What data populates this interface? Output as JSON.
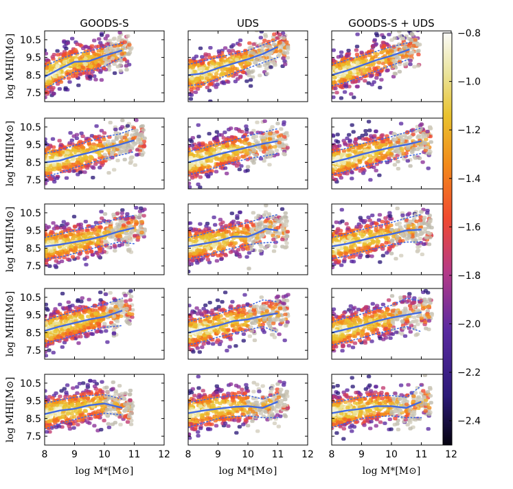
{
  "chart_data": {
    "type": "scatter",
    "description_rows": 5,
    "column_titles": [
      "GOODS-S",
      "UDS",
      "GOODS-S + UDS"
    ],
    "xlabel": "log M*[M⊙]",
    "ylabel": "log MHI[M⊙]",
    "xlim": [
      8,
      12
    ],
    "ylim": [
      7.0,
      11.0
    ],
    "xticks": [
      8,
      9,
      10,
      11,
      12
    ],
    "yticks": [
      7.5,
      8.5,
      9.5,
      10.5
    ],
    "xtick_labels": [
      "8",
      "9",
      "10",
      "11",
      "12"
    ],
    "ytick_labels": [
      "7.5",
      "8.5",
      "9.5",
      "10.5"
    ],
    "colorbar": {
      "range": [
        -2.5,
        -0.8
      ],
      "ticks": [
        -2.4,
        -2.2,
        -2.0,
        -1.8,
        -1.6,
        -1.4,
        -1.2,
        -1.0,
        -0.8
      ],
      "tick_labels": [
        "−2.4",
        "−2.2",
        "−2.0",
        "−1.8",
        "−1.6",
        "−1.4",
        "−1.2",
        "−1.0",
        "−0.8"
      ],
      "colormap": "CMRmap-like (black-purple-red-orange-yellow-white)"
    },
    "colors": {
      "median": "#4169e1",
      "percentile": "#4169e1",
      "density_low": "#2a1a5c",
      "density_high": "#f8f6d8"
    },
    "panels": [
      [
        {
          "median": {
            "x": [
              8.0,
              8.5,
              9.0,
              9.5,
              10.0,
              10.6
            ],
            "y": [
              8.4,
              8.85,
              9.25,
              9.3,
              9.6,
              9.9
            ]
          },
          "upper": {
            "x": [
              8.0,
              8.5,
              9.0,
              9.5,
              10.0,
              10.6
            ],
            "y": [
              9.0,
              9.4,
              9.7,
              9.85,
              10.1,
              10.3
            ]
          },
          "lower": {
            "x": [
              8.0,
              8.5,
              9.0,
              9.5,
              10.0,
              10.6
            ],
            "y": [
              7.7,
              8.2,
              8.7,
              8.75,
              9.0,
              9.5
            ]
          }
        },
        {
          "median": {
            "x": [
              8.0,
              8.5,
              9.0,
              9.5,
              10.0,
              10.5,
              11.0
            ],
            "y": [
              8.5,
              8.6,
              8.9,
              9.15,
              9.4,
              9.7,
              10.1
            ]
          },
          "upper": {
            "x": [
              8.0,
              8.5,
              9.0,
              9.5,
              10.0,
              10.5,
              11.0
            ],
            "y": [
              9.1,
              9.3,
              9.5,
              9.7,
              9.9,
              10.2,
              10.5
            ]
          },
          "lower": {
            "x": [
              8.0,
              8.5,
              9.0,
              9.5,
              10.0,
              10.5,
              11.0
            ],
            "y": [
              7.9,
              8.0,
              8.3,
              8.6,
              8.9,
              9.2,
              9.5
            ]
          }
        },
        {
          "median": {
            "x": [
              8.0,
              8.5,
              9.0,
              9.5,
              10.0,
              10.6
            ],
            "y": [
              8.5,
              8.75,
              9.05,
              9.35,
              9.6,
              9.95
            ]
          },
          "upper": {
            "x": [
              8.0,
              8.5,
              9.0,
              9.5,
              10.0,
              10.6
            ],
            "y": [
              9.1,
              9.35,
              9.6,
              9.85,
              10.1,
              10.35
            ]
          },
          "lower": {
            "x": [
              8.0,
              8.5,
              9.0,
              9.5,
              10.0,
              10.6
            ],
            "y": [
              7.9,
              8.1,
              8.4,
              8.75,
              9.05,
              9.4
            ]
          }
        }
      ],
      [
        {
          "median": {
            "x": [
              8.0,
              8.5,
              9.0,
              9.5,
              10.0,
              10.5,
              11.0
            ],
            "y": [
              8.5,
              8.6,
              8.85,
              9.05,
              9.3,
              9.5,
              9.75
            ]
          },
          "upper": {
            "x": [
              8.0,
              8.5,
              9.0,
              9.5,
              10.0,
              10.5,
              11.0
            ],
            "y": [
              9.0,
              9.2,
              9.45,
              9.7,
              9.95,
              10.1,
              10.4
            ]
          },
          "lower": {
            "x": [
              8.0,
              8.5,
              9.0,
              9.5,
              10.0,
              10.5,
              11.0
            ],
            "y": [
              7.7,
              7.9,
              8.2,
              8.45,
              8.7,
              8.9,
              9.1
            ]
          }
        },
        {
          "median": {
            "x": [
              8.0,
              8.5,
              9.0,
              9.5,
              10.0,
              10.5,
              11.0
            ],
            "y": [
              8.5,
              8.7,
              8.95,
              9.15,
              9.35,
              9.55,
              9.7
            ]
          },
          "upper": {
            "x": [
              8.0,
              8.5,
              9.0,
              9.5,
              10.0,
              10.5,
              11.0
            ],
            "y": [
              9.1,
              9.3,
              9.55,
              9.75,
              10.0,
              10.2,
              10.4
            ]
          },
          "lower": {
            "x": [
              8.0,
              8.5,
              9.0,
              9.5,
              10.0,
              10.5,
              11.0
            ],
            "y": [
              7.8,
              8.0,
              8.25,
              8.5,
              8.7,
              8.85,
              9.0
            ]
          }
        },
        {
          "median": {
            "x": [
              8.0,
              8.5,
              9.0,
              9.5,
              10.0,
              10.5,
              11.0
            ],
            "y": [
              8.5,
              8.7,
              8.95,
              9.15,
              9.35,
              9.5,
              9.7
            ]
          },
          "upper": {
            "x": [
              8.0,
              8.5,
              9.0,
              9.5,
              10.0,
              10.5,
              11.0
            ],
            "y": [
              9.1,
              9.3,
              9.55,
              9.75,
              9.95,
              10.2,
              10.45
            ]
          },
          "lower": {
            "x": [
              8.0,
              8.5,
              9.0,
              9.5,
              10.0,
              10.5,
              11.0
            ],
            "y": [
              7.8,
              8.0,
              8.25,
              8.45,
              8.65,
              8.85,
              9.0
            ]
          }
        }
      ],
      [
        {
          "median": {
            "x": [
              8.0,
              8.5,
              9.0,
              9.5,
              10.0,
              10.5,
              11.0
            ],
            "y": [
              8.6,
              8.7,
              8.85,
              9.0,
              9.2,
              9.45,
              9.65
            ]
          },
          "upper": {
            "x": [
              8.0,
              8.5,
              9.0,
              9.5,
              10.0,
              10.5,
              11.0
            ],
            "y": [
              9.1,
              9.3,
              9.5,
              9.7,
              9.95,
              10.2,
              10.35
            ]
          },
          "lower": {
            "x": [
              8.0,
              8.5,
              9.0,
              9.5,
              10.0,
              10.5,
              11.0
            ],
            "y": [
              7.9,
              8.0,
              8.2,
              8.45,
              8.65,
              8.85,
              8.75
            ]
          }
        },
        {
          "median": {
            "x": [
              8.0,
              8.5,
              9.0,
              9.5,
              10.0,
              10.3,
              10.6,
              11.0
            ],
            "y": [
              8.6,
              8.75,
              8.9,
              9.15,
              9.15,
              9.35,
              9.6,
              9.5
            ]
          },
          "upper": {
            "x": [
              8.0,
              8.5,
              9.0,
              9.5,
              10.0,
              10.5,
              11.0
            ],
            "y": [
              9.1,
              9.3,
              9.55,
              9.75,
              9.95,
              10.2,
              10.4
            ]
          },
          "lower": {
            "x": [
              8.0,
              8.5,
              9.0,
              9.5,
              10.0,
              10.5,
              11.0
            ],
            "y": [
              7.9,
              8.05,
              8.3,
              8.5,
              8.7,
              8.8,
              8.85
            ]
          }
        },
        {
          "median": {
            "x": [
              8.0,
              8.5,
              9.0,
              9.5,
              10.0,
              10.5,
              11.0
            ],
            "y": [
              8.6,
              8.75,
              8.95,
              9.15,
              9.3,
              9.5,
              9.55
            ]
          },
          "upper": {
            "x": [
              8.0,
              8.5,
              9.0,
              9.5,
              10.0,
              10.5,
              11.0
            ],
            "y": [
              9.1,
              9.3,
              9.55,
              9.75,
              9.95,
              10.2,
              10.4
            ]
          },
          "lower": {
            "x": [
              8.0,
              8.5,
              9.0,
              9.5,
              10.0,
              10.5,
              11.0
            ],
            "y": [
              7.9,
              8.05,
              8.3,
              8.5,
              8.7,
              8.85,
              8.85
            ]
          }
        }
      ],
      [
        {
          "median": {
            "x": [
              8.0,
              8.5,
              9.0,
              9.5,
              10.0,
              10.6
            ],
            "y": [
              8.6,
              8.85,
              9.05,
              9.25,
              9.4,
              9.75
            ]
          },
          "upper": {
            "x": [
              8.0,
              8.5,
              9.0,
              9.5,
              10.0,
              10.6
            ],
            "y": [
              9.2,
              9.45,
              9.7,
              9.95,
              10.1,
              10.45
            ]
          },
          "lower": {
            "x": [
              8.0,
              8.5,
              9.0,
              9.5,
              10.0,
              10.6
            ],
            "y": [
              7.9,
              8.1,
              8.35,
              8.6,
              8.8,
              8.9
            ]
          }
        },
        {
          "median": {
            "x": [
              8.0,
              8.5,
              9.0,
              9.5,
              10.0,
              10.5,
              11.0
            ],
            "y": [
              8.5,
              8.7,
              8.9,
              9.15,
              9.25,
              9.45,
              9.6
            ]
          },
          "upper": {
            "x": [
              8.0,
              8.5,
              9.0,
              9.5,
              10.0,
              10.5,
              11.0
            ],
            "y": [
              9.1,
              9.35,
              9.55,
              9.85,
              10.0,
              10.35,
              10.25
            ]
          },
          "lower": {
            "x": [
              8.0,
              8.5,
              9.0,
              9.5,
              10.0,
              10.5,
              11.0
            ],
            "y": [
              7.8,
              8.0,
              8.25,
              8.45,
              8.65,
              8.85,
              8.5
            ]
          }
        },
        {
          "median": {
            "x": [
              8.0,
              8.5,
              9.0,
              9.5,
              10.0,
              10.5,
              11.0
            ],
            "y": [
              8.5,
              8.7,
              8.9,
              9.15,
              9.35,
              9.5,
              9.65
            ]
          },
          "upper": {
            "x": [
              8.0,
              8.5,
              9.0,
              9.5,
              10.0,
              10.5,
              11.0
            ],
            "y": [
              9.1,
              9.35,
              9.55,
              9.85,
              10.05,
              10.45,
              10.3
            ]
          },
          "lower": {
            "x": [
              8.0,
              8.5,
              9.0,
              9.5,
              10.0,
              10.5,
              11.0
            ],
            "y": [
              7.8,
              8.0,
              8.2,
              8.45,
              8.65,
              8.85,
              8.55
            ]
          }
        }
      ],
      [
        {
          "median": {
            "x": [
              8.0,
              8.5,
              9.0,
              9.5,
              10.0,
              10.6
            ],
            "y": [
              8.75,
              8.95,
              9.05,
              9.25,
              9.35,
              9.1
            ]
          },
          "upper": {
            "x": [
              8.0,
              8.5,
              9.0,
              9.5,
              10.0,
              10.6
            ],
            "y": [
              9.35,
              9.55,
              9.7,
              9.8,
              9.85,
              9.6
            ]
          },
          "lower": {
            "x": [
              8.0,
              8.5,
              9.0,
              9.5,
              10.0,
              10.6
            ],
            "y": [
              7.9,
              8.2,
              8.45,
              8.65,
              8.8,
              8.7
            ]
          }
        },
        {
          "median": {
            "x": [
              8.0,
              8.5,
              9.0,
              9.5,
              10.0,
              10.5,
              11.0
            ],
            "y": [
              8.8,
              8.95,
              9.05,
              9.15,
              9.2,
              9.1,
              9.45
            ]
          },
          "upper": {
            "x": [
              8.0,
              8.5,
              9.0,
              9.5,
              10.0,
              10.5,
              11.0
            ],
            "y": [
              9.4,
              9.55,
              9.7,
              9.8,
              9.8,
              9.6,
              9.9
            ]
          },
          "lower": {
            "x": [
              8.0,
              8.5,
              9.0,
              9.5,
              10.0,
              10.5,
              11.0
            ],
            "y": [
              8.0,
              8.25,
              8.5,
              8.6,
              8.65,
              8.55,
              8.55
            ]
          }
        },
        {
          "median": {
            "x": [
              8.0,
              8.5,
              9.0,
              9.5,
              10.0,
              10.5,
              11.0
            ],
            "y": [
              8.8,
              8.95,
              9.05,
              9.2,
              9.2,
              9.1,
              9.45
            ]
          },
          "upper": {
            "x": [
              8.0,
              8.5,
              9.0,
              9.5,
              10.0,
              10.5,
              11.0
            ],
            "y": [
              9.4,
              9.55,
              9.7,
              9.8,
              9.8,
              9.7,
              10.35
            ]
          },
          "lower": {
            "x": [
              8.0,
              8.5,
              9.0,
              9.5,
              10.0,
              10.5,
              11.0
            ],
            "y": [
              8.0,
              8.25,
              8.5,
              8.6,
              8.65,
              8.55,
              8.55
            ]
          }
        }
      ]
    ]
  }
}
